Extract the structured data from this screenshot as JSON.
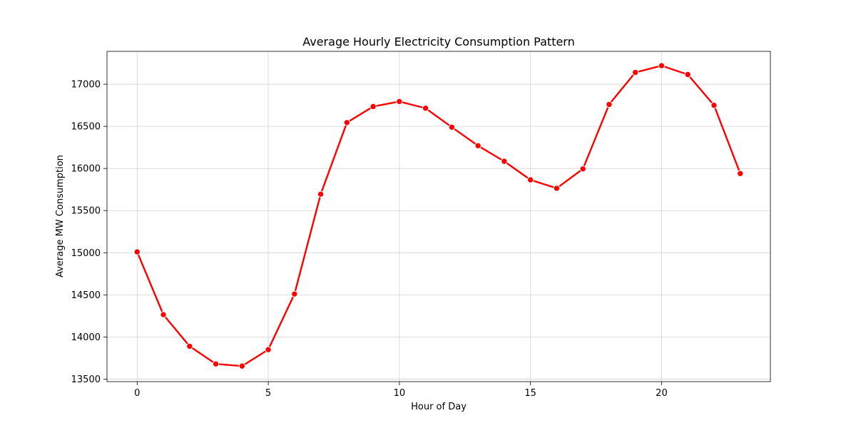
{
  "chart_data": {
    "type": "line",
    "title": "Average Hourly Electricity Consumption Pattern",
    "xlabel": "Hour of Day",
    "ylabel": "Average MW Consumption",
    "x": [
      0,
      1,
      2,
      3,
      4,
      5,
      6,
      7,
      8,
      9,
      10,
      11,
      12,
      13,
      14,
      15,
      16,
      17,
      18,
      19,
      20,
      21,
      22,
      23
    ],
    "series": [
      {
        "values": [
          15010,
          14265,
          13890,
          13680,
          13655,
          13850,
          14510,
          15695,
          16545,
          16735,
          16795,
          16715,
          16490,
          16270,
          16085,
          15865,
          15765,
          15995,
          16760,
          17140,
          17220,
          17115,
          16750,
          15940
        ],
        "color": "#ff0000",
        "marker": "circle"
      }
    ],
    "xlim": [
      -1.15,
      24.15
    ],
    "ylim": [
      13470,
      17390
    ],
    "xticks": [
      0,
      5,
      10,
      15,
      20
    ],
    "yticks": [
      13500,
      14000,
      14500,
      15000,
      15500,
      16000,
      16500,
      17000
    ],
    "grid": true
  }
}
